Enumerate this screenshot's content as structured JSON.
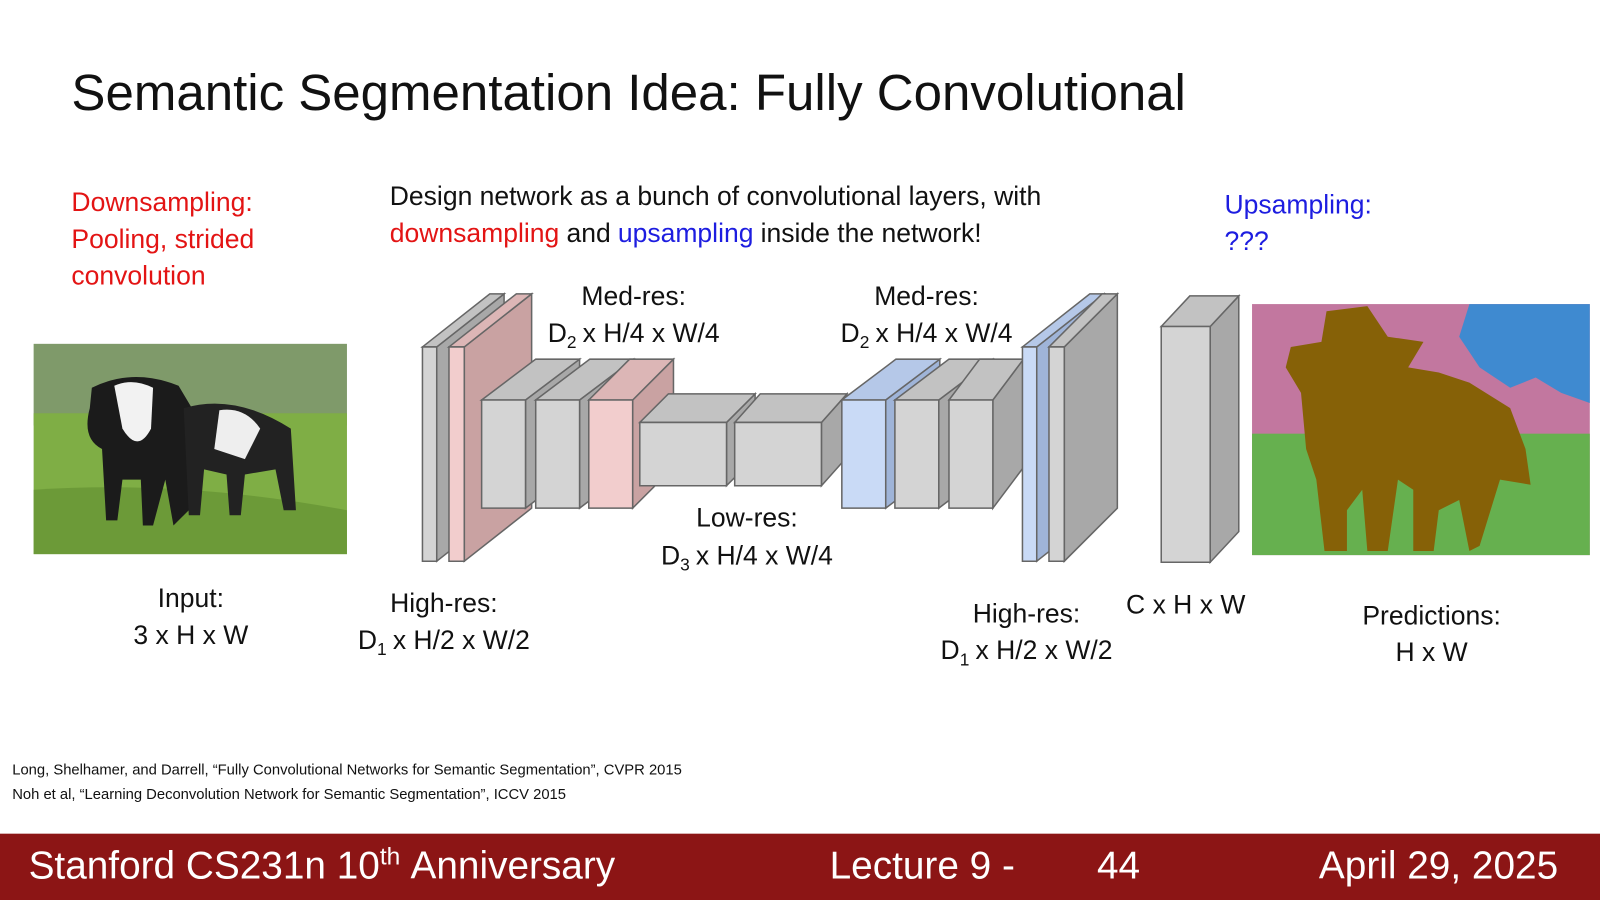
{
  "title": "Semantic Segmentation Idea: Fully Convolutional",
  "downsampling_note": [
    "Downsampling:",
    "Pooling, strided",
    "convolution"
  ],
  "design_text": {
    "line1": "Design network as a bunch of convolutional layers, with",
    "line2": [
      "downsampling",
      "and",
      "upsampling",
      "inside the network!"
    ]
  },
  "upsampling_note": [
    "Upsampling:",
    "???"
  ],
  "input_label": [
    "Input:",
    "3 x H x W"
  ],
  "high_res_left": {
    "name": "High-res:",
    "dims": {
      "base": "D",
      "sub": "1",
      "rest": "x H/2 x W/2"
    }
  },
  "med_res_left": {
    "name": "Med-res:",
    "dims": {
      "base": "D",
      "sub": "2",
      "rest": "x H/4 x W/4"
    }
  },
  "low_res": {
    "name": "Low-res:",
    "dims": {
      "base": "D",
      "sub": "3",
      "rest": "x H/4 x W/4"
    }
  },
  "med_res_right": {
    "name": "Med-res:",
    "dims": {
      "base": "D",
      "sub": "2",
      "rest": "x H/4 x W/4"
    }
  },
  "high_res_right": {
    "name": "High-res:",
    "dims": {
      "base": "D",
      "sub": "1",
      "rest": "x H/2 x W/2"
    }
  },
  "output_label": "C x H x W",
  "predictions_label": [
    "Predictions:",
    "H x W"
  ],
  "references": [
    "Long, Shelhamer, and Darrell, “Fully Convolutional Networks for Semantic Segmentation”, CVPR 2015",
    "Noh et al, “Learning Deconvolution Network for Semantic Segmentation”, ICCV 2015"
  ],
  "footer": {
    "course": "Stanford CS231n 10",
    "course_sup": "th",
    "course_rest": "Anniversary",
    "lecture": "Lecture 9 -",
    "page": "44",
    "date": "April 29, 2025"
  }
}
